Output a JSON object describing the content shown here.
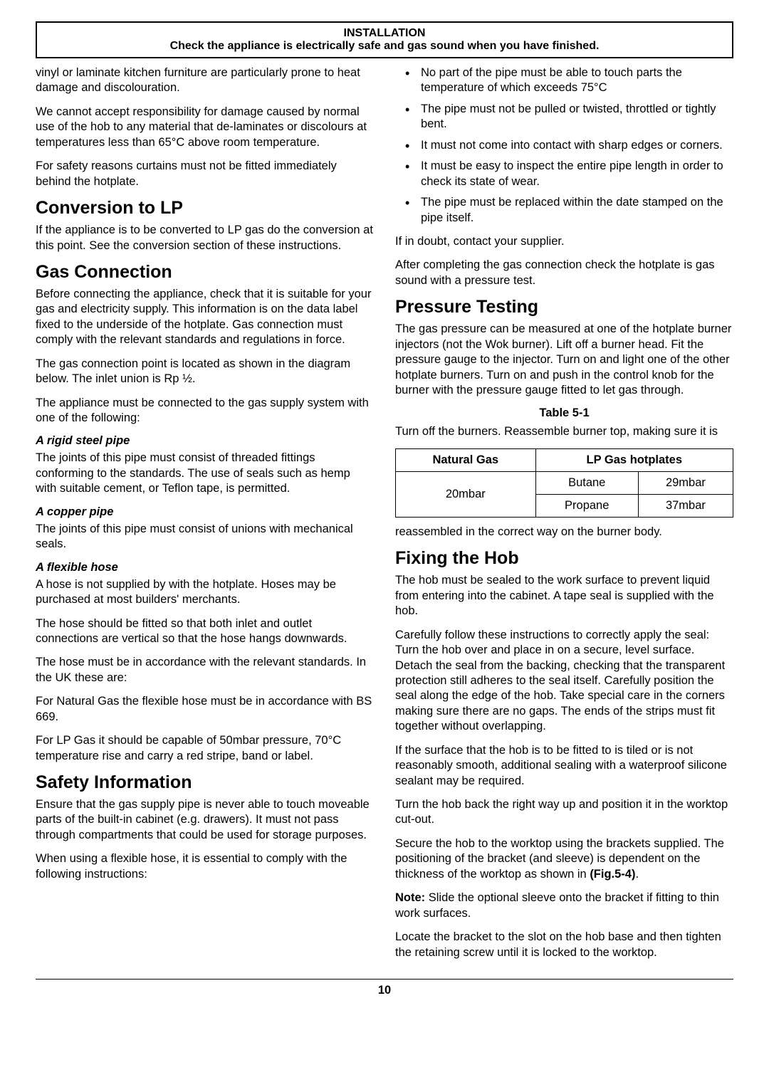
{
  "header": {
    "title": "INSTALLATION",
    "subtitle": "Check the appliance is electrically safe and gas sound when you have finished."
  },
  "left": {
    "intro1": "vinyl or laminate kitchen furniture are particularly prone to heat damage and discolouration.",
    "intro2": "We cannot accept responsibility for damage caused by normal use of the hob to any material that de-laminates or discolours at temperatures less than 65°C above room temperature.",
    "intro3": "For safety reasons curtains must not be fitted immediately behind the hotplate.",
    "lp_h": "Conversion to LP",
    "lp_p": "If the appliance is to be converted to LP gas do the conversion at this point. See the conversion section of these instructions.",
    "gc_h": "Gas Connection",
    "gc_p1": "Before connecting the appliance, check that it is suitable for your gas and electricity supply. This information is on the data label fixed to the underside of the hotplate. Gas connection must comply with the relevant standards and regulations in force.",
    "gc_p2": "The gas connection point is located as shown in the diagram below. The inlet union is Rp ½.",
    "gc_p3": "The appliance must be connected to the gas supply system with one of the following:",
    "steel_h": "A rigid steel pipe",
    "steel_p": "The joints of this pipe must consist of threaded fittings conforming to the standards. The use of seals such as hemp with suitable cement, or Teflon tape, is permitted.",
    "copper_h": "A copper pipe",
    "copper_p": "The joints of this pipe must consist of unions with mechanical seals.",
    "flex_h": "A flexible hose",
    "flex_p1": "A hose is not supplied by with the hotplate. Hoses may be purchased at most builders' merchants.",
    "flex_p2": "The hose should be fitted so that both inlet and outlet connections are vertical so that the hose hangs downwards.",
    "flex_p3": "The hose must be in accordance with the relevant standards. In the UK these are:",
    "flex_p4": "For Natural Gas the flexible hose must be in accordance with BS 669.",
    "flex_p5": "For LP Gas it should be capable of 50mbar pressure, 70°C temperature rise and carry a red stripe, band or label.",
    "safety_h": "Safety Information",
    "safety_p1": "Ensure that the gas supply pipe is never able to touch moveable parts of the built-in cabinet (e.g. drawers). It must not pass through compartments that could be used for storage purposes.",
    "safety_p2": "When using a flexible hose, it is essential to comply with the following instructions:"
  },
  "right": {
    "bullets": {
      "b1": "No part of the pipe must be able to touch parts the temperature of which exceeds 75°C",
      "b2": "The pipe must not be pulled or twisted, throttled or tightly bent.",
      "b3": "It must not come into contact with sharp edges or corners.",
      "b4": "It must be easy to inspect the entire pipe length in order to check its state of wear.",
      "b5": "The pipe must be replaced within the date stamped on the pipe itself."
    },
    "doubt": "If in doubt, contact your supplier.",
    "after": "After completing the gas connection check the hotplate is gas sound with a pressure test.",
    "pt_h": "Pressure Testing",
    "pt_p1": "The gas pressure can be measured at one of the hotplate burner injectors (not the Wok burner). Lift off a burner head. Fit the pressure gauge to the injector. Turn on and light one of the other hotplate burners. Turn on and push in the control knob for the burner with the pressure gauge fitted to let gas through.",
    "table_caption": "Table 5-1",
    "pt_p2": "Turn off the burners. Reassemble burner top, making sure it is",
    "table": {
      "h1": "Natural Gas",
      "h2": "LP Gas hotplates",
      "r1c1": "20mbar",
      "r1c2": "Butane",
      "r1c3": "29mbar",
      "r2c2": "Propane",
      "r2c3": "37mbar"
    },
    "pt_p3": "reassembled in the correct way on the burner body.",
    "fix_h": "Fixing the Hob",
    "fix_p1": "The hob must be sealed to the work surface to prevent liquid from entering into the cabinet. A tape seal is supplied with the hob.",
    "fix_p2": "Carefully follow these instructions to correctly apply the seal: Turn the hob over and place in on a secure, level surface. Detach the seal from the backing, checking that the transparent protection still adheres to the seal itself. Carefully position the seal along the edge of the hob. Take special care in the corners making sure there are no gaps. The ends of the strips must fit together without overlapping.",
    "fix_p3": "If the surface that the hob is to be fitted to is tiled or is not reasonably smooth, additional sealing with a waterproof silicone sealant may be required.",
    "fix_p4": "Turn the hob back the right way up and position it in the worktop cut-out.",
    "fix_p5_a": "Secure the hob to the worktop using the brackets supplied. The positioning of the bracket (and sleeve) is dependent on the thickness of the worktop as shown in ",
    "fix_p5_b": "(Fig.5-4)",
    "fix_p5_c": ".",
    "fix_p6_a": "Note:",
    "fix_p6_b": " Slide the optional sleeve onto the bracket if fitting to thin work surfaces.",
    "fix_p7": "Locate the bracket to the slot on the hob base and then tighten the retaining screw until it is locked to the worktop."
  },
  "page": "10"
}
